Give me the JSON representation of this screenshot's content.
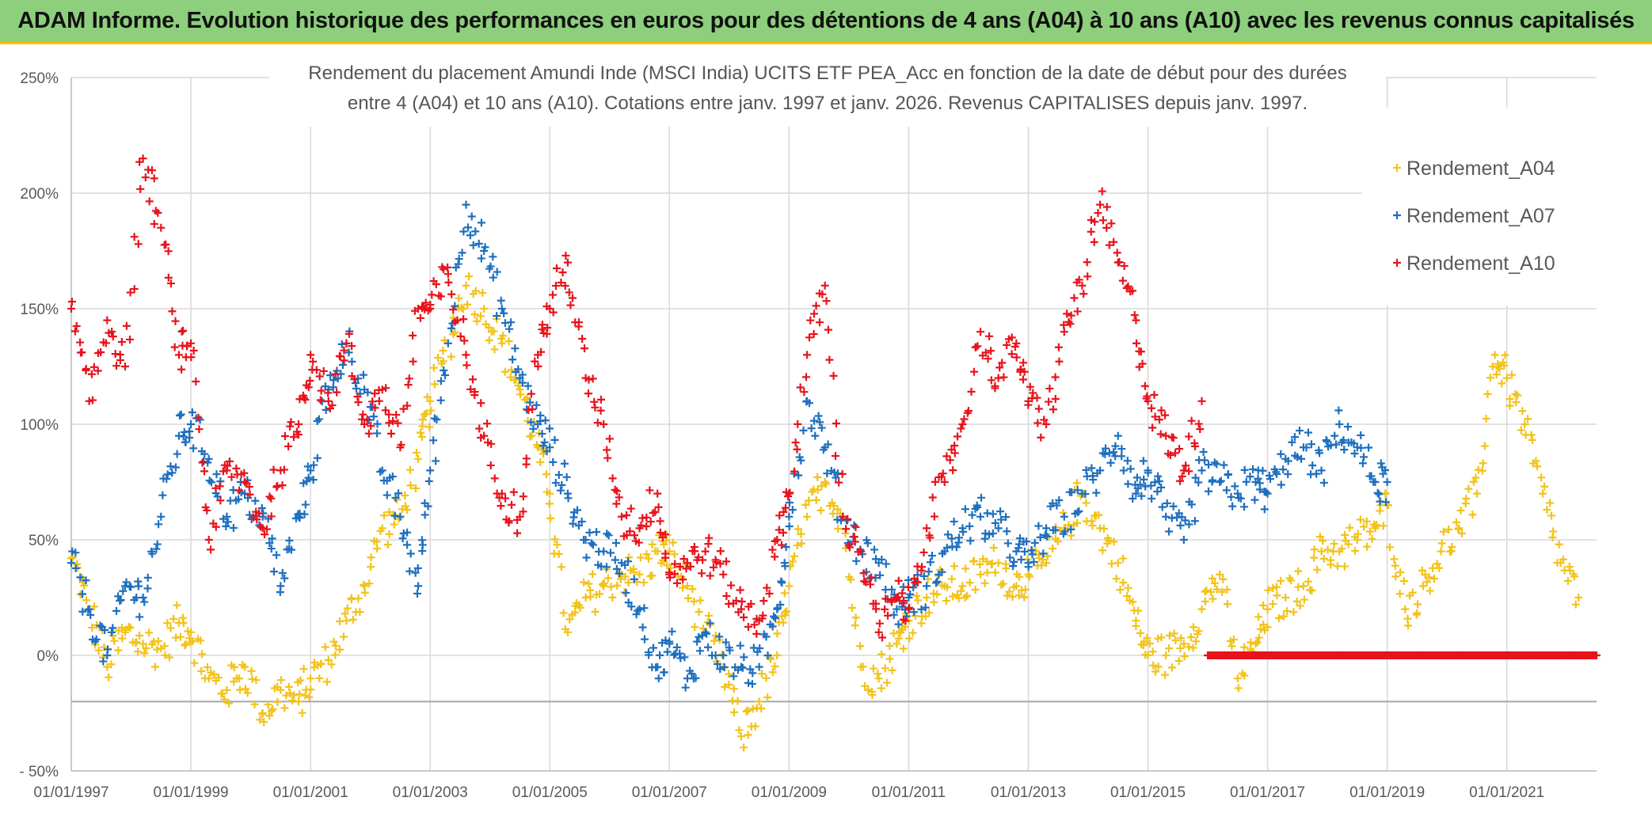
{
  "banner": {
    "title": "ADAM Informe. Evolution historique des performances en euros pour des détentions de 4 ans (A04) à 10 ans (A10) avec les revenus connus capitalisés"
  },
  "chart_data": {
    "type": "scatter",
    "title_line1": "Rendement du placement Amundi Inde (MSCI India) UCITS ETF PEA_Acc en fonction de la date de début pour des durées",
    "title_line2": "entre 4 (A04) et 10 ans (A10). Cotations entre janv. 1997 et janv. 2026. Revenus CAPITALISES depuis janv. 1997.",
    "xlabel": "",
    "ylabel": "",
    "xlim": [
      1997.0,
      2022.5
    ],
    "ylim": [
      -50,
      250
    ],
    "y_ticks": [
      -50,
      0,
      50,
      100,
      150,
      200,
      250
    ],
    "y_tick_labels": [
      "- 50%",
      "0%",
      "50%",
      "100%",
      "150%",
      "200%",
      "250%"
    ],
    "reference_line": -20,
    "x_ticks": [
      1997,
      1999,
      2001,
      2003,
      2005,
      2007,
      2009,
      2011,
      2013,
      2015,
      2017,
      2019,
      2021
    ],
    "x_tick_labels": [
      "01/01/1997",
      "01/01/1999",
      "01/01/2001",
      "01/01/2003",
      "01/01/2005",
      "01/01/2007",
      "01/01/2009",
      "01/01/2011",
      "01/01/2013",
      "01/01/2015",
      "01/01/2017",
      "01/01/2019",
      "01/01/2021"
    ],
    "legend_position": "top-right",
    "series": [
      {
        "name": "Rendement_A04",
        "color": "#f2c31a",
        "x": [
          1997.0,
          1997.3,
          1997.6,
          1997.9,
          1998.2,
          1998.5,
          1998.8,
          1999.0,
          1999.3,
          1999.6,
          1999.9,
          2000.2,
          2000.5,
          2000.8,
          2001.0,
          2001.3,
          2001.6,
          2001.9,
          2002.2,
          2002.5,
          2002.8,
          2003.0,
          2003.3,
          2003.6,
          2003.9,
          2004.2,
          2004.5,
          2004.8,
          2005.0,
          2005.3,
          2005.6,
          2005.9,
          2006.2,
          2006.5,
          2006.8,
          2007.0,
          2007.3,
          2007.6,
          2007.9,
          2008.2,
          2008.5,
          2008.8,
          2009.0,
          2009.3,
          2009.6,
          2009.9,
          2010.2,
          2010.5,
          2010.8,
          2011.0,
          2011.3,
          2011.6,
          2011.9,
          2012.2,
          2012.5,
          2012.8,
          2013.0,
          2013.3,
          2013.6,
          2013.9,
          2014.2,
          2014.5,
          2014.8,
          2015.0,
          2015.3,
          2015.6,
          2015.9,
          2016.2,
          2016.5,
          2016.8,
          2017.0,
          2017.3,
          2017.6,
          2017.9,
          2018.2,
          2018.5,
          2018.8,
          2019.0,
          2019.3,
          2019.6,
          2019.9,
          2020.2,
          2020.5,
          2020.8,
          2021.0,
          2021.3,
          2021.6,
          2021.9,
          2022.2
        ],
        "y": [
          42,
          20,
          -5,
          10,
          5,
          3,
          14,
          10,
          -10,
          -15,
          -5,
          -25,
          -15,
          -20,
          -10,
          -2,
          15,
          30,
          55,
          60,
          85,
          110,
          135,
          160,
          150,
          135,
          115,
          90,
          70,
          10,
          25,
          30,
          35,
          35,
          45,
          45,
          30,
          10,
          -5,
          -35,
          -20,
          0,
          30,
          60,
          75,
          60,
          -5,
          -10,
          5,
          15,
          25,
          30,
          30,
          35,
          40,
          30,
          35,
          40,
          55,
          70,
          55,
          40,
          15,
          0,
          0,
          5,
          20,
          35,
          -10,
          5,
          20,
          25,
          30,
          45,
          45,
          50,
          55,
          65,
          20,
          30,
          45,
          55,
          70,
          130,
          120,
          100,
          70,
          40,
          25
        ],
        "marker": "+"
      },
      {
        "name": "Rendement_A07",
        "color": "#1e6fbf",
        "x": [
          1997.0,
          1997.3,
          1997.6,
          1997.9,
          1998.2,
          1998.5,
          1998.8,
          1999.0,
          1999.3,
          1999.6,
          1999.9,
          2000.2,
          2000.5,
          2000.8,
          2001.0,
          2001.3,
          2001.6,
          2001.9,
          2002.2,
          2002.5,
          2002.8,
          2003.0,
          2003.3,
          2003.6,
          2003.9,
          2004.2,
          2004.5,
          2004.8,
          2005.0,
          2005.3,
          2005.6,
          2005.9,
          2006.2,
          2006.5,
          2006.8,
          2007.0,
          2007.3,
          2007.6,
          2007.9,
          2008.2,
          2008.5,
          2008.8,
          2009.0,
          2009.3,
          2009.6,
          2009.9,
          2010.2,
          2010.5,
          2010.8,
          2011.0,
          2011.3,
          2011.6,
          2011.9,
          2012.2,
          2012.5,
          2012.8,
          2013.0,
          2013.3,
          2013.6,
          2013.9,
          2014.2,
          2014.5,
          2014.8,
          2015.0,
          2015.3,
          2015.6,
          2015.9,
          2016.2,
          2016.5,
          2016.8,
          2017.0,
          2017.3,
          2017.6,
          2017.9,
          2018.2,
          2018.5,
          2018.8,
          2019.0
        ],
        "y": [
          40,
          20,
          0,
          30,
          25,
          60,
          95,
          100,
          85,
          60,
          70,
          60,
          30,
          60,
          80,
          115,
          135,
          115,
          80,
          60,
          30,
          80,
          135,
          195,
          175,
          150,
          120,
          100,
          90,
          70,
          50,
          45,
          40,
          20,
          -5,
          5,
          -10,
          10,
          0,
          -5,
          -5,
          20,
          60,
          110,
          90,
          60,
          45,
          40,
          20,
          25,
          30,
          45,
          55,
          60,
          55,
          45,
          40,
          55,
          60,
          70,
          80,
          95,
          70,
          80,
          60,
          50,
          80,
          75,
          70,
          75,
          70,
          85,
          90,
          80,
          100,
          90,
          75,
          75
        ],
        "marker": "+"
      },
      {
        "name": "Rendement_A10",
        "color": "#e8131b",
        "x": [
          1997.0,
          1997.3,
          1997.6,
          1997.9,
          1998.2,
          1998.5,
          1998.8,
          1999.0,
          1999.3,
          1999.6,
          1999.9,
          2000.2,
          2000.5,
          2000.8,
          2001.0,
          2001.3,
          2001.6,
          2001.9,
          2002.2,
          2002.5,
          2002.8,
          2003.0,
          2003.3,
          2003.6,
          2003.9,
          2004.2,
          2004.5,
          2004.8,
          2005.0,
          2005.3,
          2005.6,
          2005.9,
          2006.2,
          2006.5,
          2006.8,
          2007.0,
          2007.3,
          2007.6,
          2007.9,
          2008.2,
          2008.5,
          2008.8,
          2009.0,
          2009.3,
          2009.6,
          2009.9,
          2010.2,
          2010.5,
          2010.8,
          2011.0,
          2011.3,
          2011.6,
          2011.9,
          2012.2,
          2012.5,
          2012.8,
          2013.0,
          2013.3,
          2013.6,
          2013.9,
          2014.2,
          2014.5,
          2014.8,
          2015.0,
          2015.3,
          2015.6,
          2015.9
        ],
        "y": [
          150,
          110,
          145,
          125,
          215,
          185,
          130,
          135,
          50,
          80,
          75,
          55,
          80,
          100,
          130,
          110,
          135,
          100,
          115,
          90,
          150,
          150,
          165,
          130,
          95,
          70,
          60,
          130,
          150,
          170,
          120,
          100,
          60,
          55,
          70,
          35,
          40,
          45,
          35,
          20,
          15,
          50,
          70,
          130,
          160,
          60,
          45,
          10,
          25,
          20,
          55,
          75,
          100,
          140,
          120,
          135,
          110,
          100,
          140,
          160,
          195,
          170,
          145,
          110,
          95,
          80,
          110
        ],
        "marker": "+"
      },
      {
        "name": "Rendement_A10 (zero segment)",
        "color": "#e8131b",
        "x_range": [
          2016.0,
          2022.5
        ],
        "value": 0,
        "legend": false
      }
    ]
  }
}
